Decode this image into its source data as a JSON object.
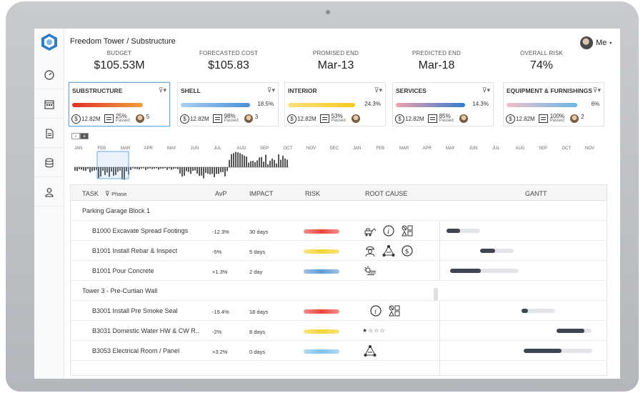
{
  "header": {
    "project_title": "Freedom Tower / Substructure",
    "user": "Me"
  },
  "metrics": [
    {
      "label": "BUDGET",
      "value": "$105.53M"
    },
    {
      "label": "FORECASTED COST",
      "value": "$105.83"
    },
    {
      "label": "PROMISED END",
      "value": "Mar-13"
    },
    {
      "label": "PREDICTED END",
      "value": "Mar-18"
    },
    {
      "label": "OVERALL RISK",
      "value": "74%"
    }
  ],
  "cards": [
    {
      "name": "SUBSTRUCTURE",
      "pct": "",
      "progress": 0.84,
      "cost": "12.82M",
      "passed_pct": "25%",
      "passed_label": "Passed",
      "count": "5",
      "colors": [
        "#f0a03a",
        "#e0322a"
      ]
    },
    {
      "name": "SHELL",
      "pct": "18.5%",
      "progress": 0.82,
      "cost": "12.82M",
      "passed_pct": "98%",
      "passed_label": "Passed",
      "count": "3",
      "colors": [
        "#4a8fd8",
        "#a9d1f2"
      ]
    },
    {
      "name": "INTERIOR",
      "pct": "24.3%",
      "progress": 0.8,
      "cost": "12.82M",
      "passed_pct": "53%",
      "passed_label": "Passed",
      "count": "",
      "colors": [
        "#f7c81f",
        "#fbe27a"
      ]
    },
    {
      "name": "SERVICES",
      "pct": "14.3%",
      "progress": 0.82,
      "cost": "12.82M",
      "passed_pct": "85%",
      "passed_label": "Passed",
      "count": "",
      "colors": [
        "#2f7fd0",
        "#f2a0a8"
      ]
    },
    {
      "name": "EQUIPMENT & FURNISHINGS",
      "pct": "6%",
      "progress": 0.84,
      "cost": "12.82M",
      "passed_pct": "100%",
      "passed_label": "Passed",
      "count": "2",
      "colors": [
        "#6ab7e8",
        "#f2c0c8"
      ]
    }
  ],
  "timeline": {
    "zoom_out": "-",
    "zoom_in": "+",
    "months": [
      "JAN",
      "FEB",
      "MAR",
      "APR",
      "MAY",
      "JUN",
      "JUL",
      "AUG",
      "SEP",
      "OCT",
      "NOV",
      "DEC",
      "JAN",
      "FEB",
      "MAR",
      "APR",
      "MAY",
      "JUN",
      "JUL",
      "AUG",
      "SEP",
      "OCT",
      "NOV"
    ]
  },
  "table": {
    "headers": {
      "task": "TASK",
      "phase": "Phase",
      "avp": "AvP",
      "impact": "IMPACT",
      "risk": "RISK",
      "root_cause": "ROOT CAUSE",
      "gantt": "GANTT"
    },
    "rows": [
      {
        "type": "group",
        "task": "Parking Garage Block 1"
      },
      {
        "type": "task",
        "task": "B1000 Excavate Spread Footings",
        "avp": "-12.3%",
        "impact": "30 days",
        "risk_color": "#e8463a",
        "root_cause": [
          "excavator-icon",
          "info-icon",
          "shapes-icon"
        ],
        "gantt_start": 0.04,
        "gantt_len": 0.2,
        "gantt_progress": 0.4
      },
      {
        "type": "task",
        "task": "B1001 Install Rebar & Inspect",
        "avp": "-5%",
        "impact": "5 days",
        "risk_color": "#f5d431",
        "root_cause": [
          "worker-icon",
          "network-icon",
          "dollar-icon"
        ],
        "gantt_start": 0.24,
        "gantt_len": 0.2,
        "gantt_progress": 0.45
      },
      {
        "type": "task",
        "task": "B1001 Pour Concrete",
        "avp": "+1.3%",
        "impact": "2 day",
        "risk_color": "#5d9ad6",
        "root_cause": [
          "weather-icon"
        ],
        "gantt_start": 0.06,
        "gantt_len": 0.41,
        "gantt_progress": 0.45
      },
      {
        "type": "group",
        "task": "Tower 3 - Pre-Curtian Wall"
      },
      {
        "type": "task",
        "task": "B3001 Install Pre Smoke Seal",
        "avp": "-15.4%",
        "impact": "18 days",
        "risk_color": "#e8463a",
        "root_cause": [
          "info-icon",
          "shapes-icon"
        ],
        "gantt_start": 0.49,
        "gantt_len": 0.2,
        "gantt_progress": 0.2
      },
      {
        "type": "task",
        "task": "B3031 Domestic Water HW & CW R..",
        "avp": "-2%",
        "impact": "8 days",
        "risk_color": "#f5d431",
        "root_cause": [],
        "stars": "★☆☆☆",
        "gantt_start": 0.7,
        "gantt_len": 0.21,
        "gantt_progress": 0.8
      },
      {
        "type": "task",
        "task": "B3053 Electrical Room / Panel",
        "avp": "+3.2%",
        "impact": "0 days",
        "risk_color": "#7dc4ef",
        "root_cause": [
          "network-icon"
        ],
        "gantt_start": 0.5,
        "gantt_len": 0.41,
        "gantt_progress": 0.55
      }
    ]
  }
}
